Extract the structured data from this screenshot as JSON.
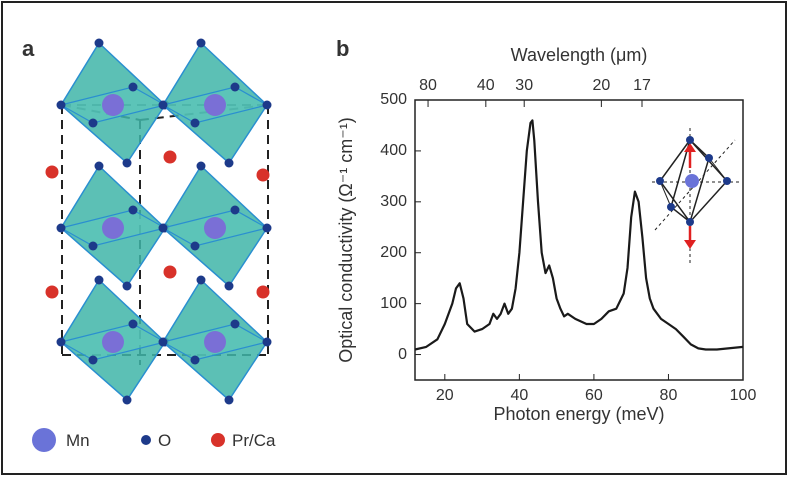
{
  "panel_a": {
    "label": "a",
    "legend": [
      "Mn",
      "O",
      "Pr/Ca"
    ]
  },
  "chart_data": {
    "type": "line",
    "label": "b",
    "xlabel": "Photon energy (meV)",
    "ylabel": "Optical conductivity (Ω⁻¹ cm⁻¹)",
    "x2label": "Wavelength (μm)",
    "x": [
      12,
      15,
      18,
      20,
      22,
      23,
      24,
      25,
      26,
      28,
      30,
      32,
      33,
      34,
      35,
      36,
      37,
      38,
      39,
      40,
      41,
      42,
      43,
      43.5,
      44,
      45,
      46,
      47,
      48,
      49,
      50,
      51,
      52,
      53,
      55,
      58,
      60,
      62,
      64,
      66,
      68,
      69,
      70,
      71,
      72,
      73,
      74,
      75,
      76,
      78,
      80,
      82,
      84,
      86,
      88,
      90,
      93,
      96,
      100
    ],
    "values": [
      10,
      15,
      30,
      60,
      100,
      130,
      140,
      110,
      60,
      45,
      50,
      60,
      80,
      70,
      80,
      100,
      80,
      90,
      130,
      200,
      300,
      400,
      455,
      460,
      420,
      300,
      200,
      160,
      175,
      150,
      110,
      90,
      75,
      80,
      70,
      60,
      60,
      70,
      85,
      90,
      120,
      170,
      270,
      320,
      300,
      230,
      150,
      110,
      90,
      70,
      60,
      50,
      35,
      20,
      12,
      10,
      10,
      12,
      15
    ],
    "color": "#1a1a1a",
    "xlim": [
      12,
      100
    ],
    "xticks": [
      20,
      40,
      60,
      80,
      100
    ],
    "ylim": [
      -50,
      500
    ],
    "yticks": [
      0,
      100,
      200,
      300,
      400,
      500
    ],
    "x2ticks": [
      {
        "value": 15.5,
        "label": "80"
      },
      {
        "value": 31,
        "label": "40"
      },
      {
        "value": 41.3,
        "label": "30"
      },
      {
        "value": 62,
        "label": "20"
      },
      {
        "value": 72.9,
        "label": "17"
      }
    ]
  }
}
